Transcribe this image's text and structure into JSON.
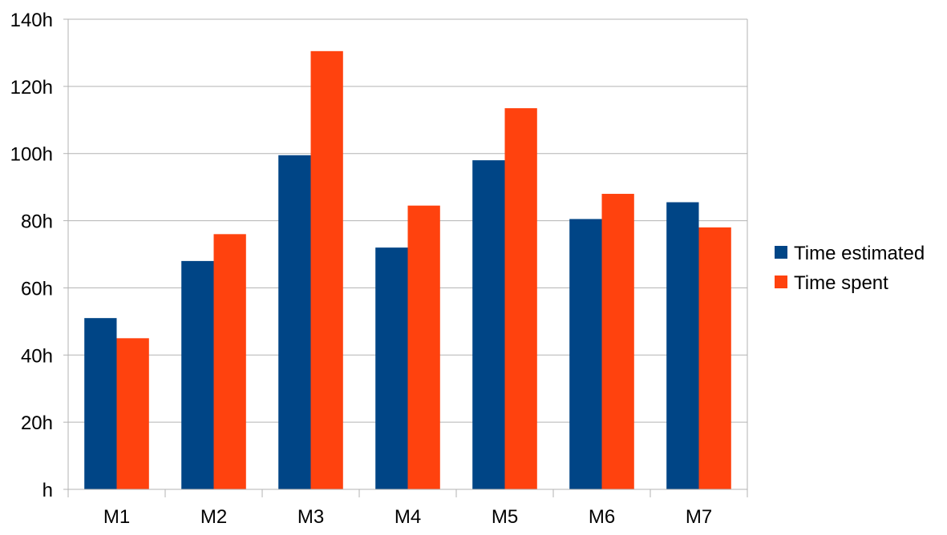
{
  "chart_data": {
    "type": "bar",
    "categories": [
      "M1",
      "M2",
      "M3",
      "M4",
      "M5",
      "M6",
      "M7"
    ],
    "series": [
      {
        "name": "Time estimated",
        "color": "#004586",
        "values": [
          51,
          68,
          99.5,
          72,
          98,
          80.5,
          85.5
        ]
      },
      {
        "name": "Time spent",
        "color": "#ff420e",
        "values": [
          45,
          76,
          130.5,
          84.5,
          113.5,
          88,
          78
        ]
      }
    ],
    "title": "",
    "xlabel": "",
    "ylabel": "",
    "ylim": [
      0,
      140
    ],
    "yticks": [
      0,
      20,
      40,
      60,
      80,
      100,
      120,
      140
    ],
    "ytick_labels": [
      "h",
      "20h",
      "40h",
      "60h",
      "80h",
      "100h",
      "120h",
      "140h"
    ],
    "grid": true,
    "legend_position": "right"
  }
}
